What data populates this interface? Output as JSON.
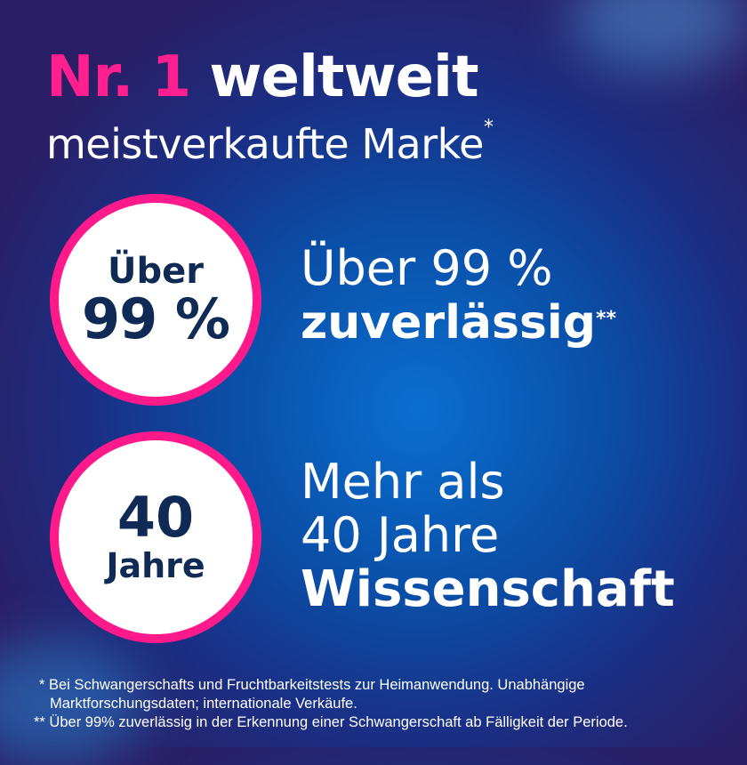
{
  "headline": {
    "highlight": "Nr. 1",
    "rest": "weltweit"
  },
  "subheadline": {
    "text": "meistverkaufte Marke",
    "footnote_mark": "*"
  },
  "badge_reliability": {
    "line1": "Über",
    "line2": "99 %"
  },
  "claim_reliability": {
    "line1": "Über 99 %",
    "line2": "zuverlässig",
    "footnote_mark": "**"
  },
  "badge_years": {
    "line1": "40",
    "line2": "Jahre"
  },
  "claim_years": {
    "line1": "Mehr als",
    "line2": "40 Jahre",
    "line3": "Wissenschaft"
  },
  "footnotes": {
    "note1_line1": "* Bei Schwangerschafts und Fruchtbarkeitstests zur Heimanwendung. Unabhängige",
    "note1_line2": "Marktforschungsdaten; internationale Verkäufe.",
    "note2": "** Über 99% zuverlässig in der Erkennung einer Schwangerschaft ab Fälligkeit der Periode."
  },
  "colors": {
    "accent": "#ff1a8c",
    "navy": "#0f2a55",
    "background": "#0a4fa8"
  }
}
